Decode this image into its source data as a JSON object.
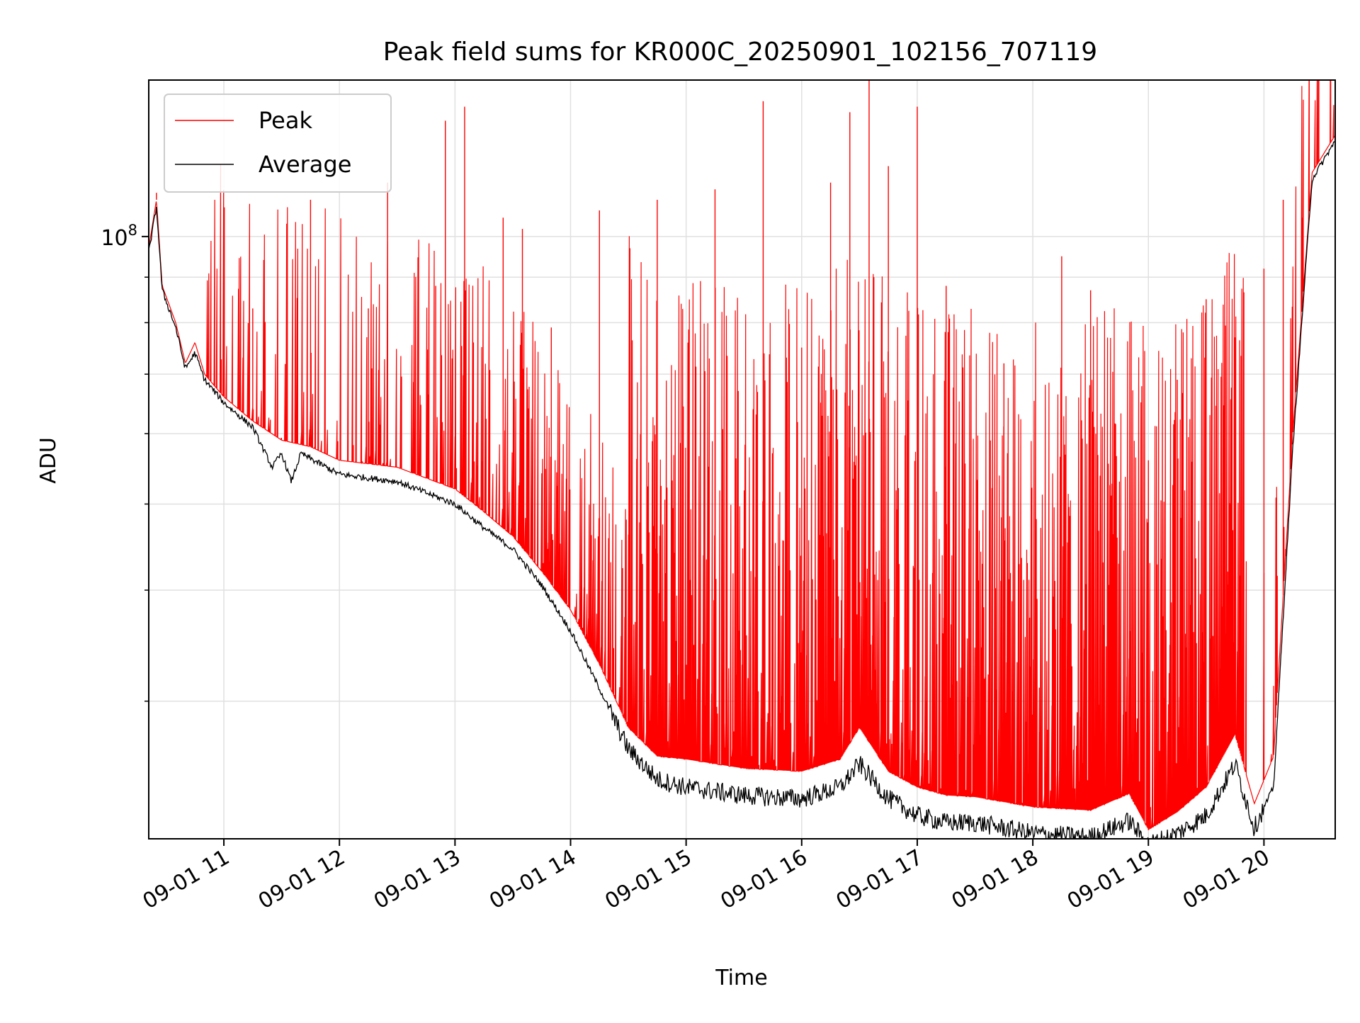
{
  "chart_data": {
    "type": "line",
    "title": "Peak field sums for KR000C_20250901_102156_707119",
    "xlabel": "Time",
    "ylabel": "ADU",
    "y_scale": "log",
    "x_range": [
      "2025-09-01 10:21",
      "2025-09-01 20:37"
    ],
    "ylim": [
      21000000,
      150000000
    ],
    "y_major_ticks": [
      {
        "value": 100000000,
        "label_base": "10",
        "label_exp": "8"
      }
    ],
    "y_minor_ticks": [
      30000000,
      40000000,
      50000000,
      60000000,
      70000000,
      80000000,
      90000000,
      200000000
    ],
    "x_ticks": [
      {
        "time": "2025-09-01 11:00",
        "label": "09-01 11"
      },
      {
        "time": "2025-09-01 12:00",
        "label": "09-01 12"
      },
      {
        "time": "2025-09-01 13:00",
        "label": "09-01 13"
      },
      {
        "time": "2025-09-01 14:00",
        "label": "09-01 14"
      },
      {
        "time": "2025-09-01 15:00",
        "label": "09-01 15"
      },
      {
        "time": "2025-09-01 16:00",
        "label": "09-01 16"
      },
      {
        "time": "2025-09-01 17:00",
        "label": "09-01 17"
      },
      {
        "time": "2025-09-01 18:00",
        "label": "09-01 18"
      },
      {
        "time": "2025-09-01 19:00",
        "label": "09-01 19"
      },
      {
        "time": "2025-09-01 20:00",
        "label": "09-01 20"
      }
    ],
    "grid": true,
    "legend_position": "upper-left",
    "series": [
      {
        "name": "Peak",
        "color": "#ff0000",
        "points": [
          [
            "10:21",
            97000000
          ],
          [
            "10:25",
            110000000
          ],
          [
            "10:28",
            88000000
          ],
          [
            "10:35",
            80000000
          ],
          [
            "10:40",
            72000000
          ],
          [
            "10:45",
            76000000
          ],
          [
            "10:50",
            70000000
          ],
          [
            "11:00",
            66000000
          ],
          [
            "11:15",
            62000000
          ],
          [
            "11:30",
            59000000
          ],
          [
            "11:45",
            58000000
          ],
          [
            "12:00",
            56000000
          ],
          [
            "12:30",
            55000000
          ],
          [
            "13:00",
            52000000
          ],
          [
            "13:15",
            49000000
          ],
          [
            "13:30",
            46000000
          ],
          [
            "13:45",
            42000000
          ],
          [
            "14:00",
            38000000
          ],
          [
            "14:15",
            33000000
          ],
          [
            "14:30",
            28000000
          ],
          [
            "14:45",
            26000000
          ],
          [
            "15:00",
            25800000
          ],
          [
            "15:30",
            25200000
          ],
          [
            "16:00",
            25000000
          ],
          [
            "16:20",
            25800000
          ],
          [
            "16:30",
            28000000
          ],
          [
            "16:45",
            25000000
          ],
          [
            "17:00",
            24000000
          ],
          [
            "17:15",
            23500000
          ],
          [
            "17:30",
            23400000
          ],
          [
            "18:00",
            22800000
          ],
          [
            "18:30",
            22600000
          ],
          [
            "18:50",
            23600000
          ],
          [
            "19:00",
            21500000
          ],
          [
            "19:15",
            22500000
          ],
          [
            "19:30",
            24000000
          ],
          [
            "19:45",
            27500000
          ],
          [
            "19:55",
            23000000
          ],
          [
            "20:05",
            26000000
          ],
          [
            "20:15",
            60000000
          ],
          [
            "20:25",
            118000000
          ],
          [
            "20:35",
            128000000
          ],
          [
            "20:37",
            130000000
          ]
        ],
        "spikes": [
          [
            "10:25",
            112000000
          ],
          [
            "11:15",
            83000000
          ],
          [
            "11:45",
            110000000
          ],
          [
            "12:15",
            83000000
          ],
          [
            "12:25",
            115000000
          ],
          [
            "12:50",
            88000000
          ],
          [
            "12:55",
            135000000
          ],
          [
            "13:05",
            140000000
          ],
          [
            "13:25",
            105000000
          ],
          [
            "13:35",
            102000000
          ],
          [
            "13:50",
            79000000
          ],
          [
            "14:15",
            107000000
          ],
          [
            "14:45",
            110000000
          ],
          [
            "15:15",
            113000000
          ],
          [
            "15:40",
            142000000
          ],
          [
            "16:00",
            75000000
          ],
          [
            "16:15",
            115000000
          ],
          [
            "16:25",
            138000000
          ],
          [
            "16:35",
            150000000
          ],
          [
            "16:45",
            120000000
          ],
          [
            "17:00",
            140000000
          ],
          [
            "17:15",
            88000000
          ],
          [
            "17:45",
            72000000
          ],
          [
            "18:15",
            95000000
          ],
          [
            "18:30",
            87000000
          ],
          [
            "19:00",
            56000000
          ],
          [
            "19:15",
            69000000
          ],
          [
            "19:30",
            85000000
          ],
          [
            "19:45",
            77000000
          ],
          [
            "20:00",
            92000000
          ],
          [
            "20:10",
            110000000
          ],
          [
            "20:20",
            105000000
          ]
        ]
      },
      {
        "name": "Average",
        "color": "#000000",
        "points": [
          [
            "10:21",
            96000000
          ],
          [
            "10:25",
            108000000
          ],
          [
            "10:28",
            87000000
          ],
          [
            "10:35",
            79000000
          ],
          [
            "10:40",
            71000000
          ],
          [
            "10:45",
            74000000
          ],
          [
            "10:50",
            69000000
          ],
          [
            "11:00",
            65000000
          ],
          [
            "11:15",
            61000000
          ],
          [
            "11:25",
            55000000
          ],
          [
            "11:30",
            57000000
          ],
          [
            "11:35",
            53000000
          ],
          [
            "11:40",
            57000000
          ],
          [
            "12:00",
            54000000
          ],
          [
            "12:30",
            53000000
          ],
          [
            "13:00",
            50000000
          ],
          [
            "13:15",
            47000000
          ],
          [
            "13:30",
            44500000
          ],
          [
            "13:45",
            40500000
          ],
          [
            "14:00",
            36000000
          ],
          [
            "14:15",
            31000000
          ],
          [
            "14:30",
            26500000
          ],
          [
            "14:45",
            24500000
          ],
          [
            "15:00",
            24000000
          ],
          [
            "15:30",
            23500000
          ],
          [
            "16:00",
            23300000
          ],
          [
            "16:20",
            24000000
          ],
          [
            "16:30",
            25500000
          ],
          [
            "16:45",
            23300000
          ],
          [
            "17:00",
            22300000
          ],
          [
            "17:15",
            21900000
          ],
          [
            "17:30",
            21900000
          ],
          [
            "18:00",
            21300000
          ],
          [
            "18:30",
            21100000
          ],
          [
            "18:50",
            22000000
          ],
          [
            "19:00",
            20700000
          ],
          [
            "19:15",
            21300000
          ],
          [
            "19:30",
            22300000
          ],
          [
            "19:45",
            25500000
          ],
          [
            "19:55",
            21600000
          ],
          [
            "20:05",
            24000000
          ],
          [
            "20:15",
            58000000
          ],
          [
            "20:25",
            116000000
          ],
          [
            "20:35",
            126000000
          ],
          [
            "20:37",
            128000000
          ]
        ]
      }
    ]
  }
}
